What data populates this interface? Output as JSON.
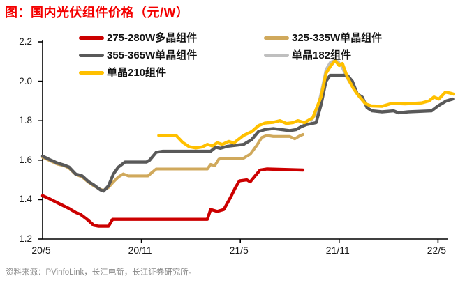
{
  "header": {
    "title": "图：国内光伏组件价格（元/W）",
    "title_color": "#f40000"
  },
  "footer": {
    "source": "资料来源：PVinfoLink，长江电新，长江证券研究所。"
  },
  "legend": {
    "items": [
      {
        "label": "275-280W多晶组件",
        "color": "#cc0000"
      },
      {
        "label": "325-335W单晶组件",
        "color": "#d0a95c"
      },
      {
        "label": "355-365W单晶组件",
        "color": "#595959"
      },
      {
        "label": "单晶182组件",
        "color": "#bfbfbf"
      },
      {
        "label": "单晶210组件",
        "color": "#ffc000"
      }
    ]
  },
  "chart_data": {
    "type": "line",
    "title": "国内光伏组件价格（元/W）",
    "ylabel": "元/W",
    "ylim": [
      1.2,
      2.2
    ],
    "grid": false,
    "legend_position": "top",
    "x_note": "months since 2020-05; axis labels every 6 months",
    "x_axis": {
      "labels": [
        "20/5",
        "20/11",
        "21/5",
        "21/11",
        "22/5"
      ],
      "label_months": [
        0,
        6,
        12,
        18,
        24
      ],
      "tick_months": [
        6,
        12,
        18,
        24
      ]
    },
    "y_axis": {
      "tick_labels": [
        "1.2",
        "1.4",
        "1.6",
        "1.8",
        "2.0",
        "2.2"
      ],
      "tick_values": [
        1.2,
        1.4,
        1.6,
        1.8,
        2.0,
        2.2
      ]
    },
    "draw_order": [
      3,
      1,
      2,
      4,
      0
    ],
    "series": [
      {
        "name": "275-280W多晶组件",
        "color": "#cc0000",
        "width": 4.4,
        "points": [
          [
            0,
            1.42
          ],
          [
            0.4,
            1.405
          ],
          [
            1,
            1.38
          ],
          [
            1.6,
            1.355
          ],
          [
            2,
            1.335
          ],
          [
            2.3,
            1.325
          ],
          [
            2.7,
            1.3
          ],
          [
            3.1,
            1.27
          ],
          [
            3.4,
            1.265
          ],
          [
            4.0,
            1.265
          ],
          [
            4.25,
            1.3
          ],
          [
            10.0,
            1.3
          ],
          [
            10.2,
            1.35
          ],
          [
            10.6,
            1.34
          ],
          [
            11.0,
            1.35
          ],
          [
            11.4,
            1.41
          ],
          [
            11.7,
            1.46
          ],
          [
            11.95,
            1.495
          ],
          [
            12.4,
            1.5
          ],
          [
            12.6,
            1.49
          ],
          [
            12.9,
            1.52
          ],
          [
            13.2,
            1.55
          ],
          [
            13.6,
            1.555
          ],
          [
            15.8,
            1.55
          ]
        ]
      },
      {
        "name": "325-335W单晶组件",
        "color": "#d0a95c",
        "width": 4.1,
        "points": [
          [
            0,
            1.615
          ],
          [
            0.5,
            1.595
          ],
          [
            0.9,
            1.58
          ],
          [
            1.3,
            1.572
          ],
          [
            1.6,
            1.56
          ],
          [
            2.0,
            1.528
          ],
          [
            2.4,
            1.515
          ],
          [
            2.8,
            1.487
          ],
          [
            3.1,
            1.47
          ],
          [
            3.5,
            1.452
          ],
          [
            3.7,
            1.447
          ],
          [
            4.0,
            1.462
          ],
          [
            4.3,
            1.49
          ],
          [
            4.6,
            1.515
          ],
          [
            4.9,
            1.53
          ],
          [
            5.2,
            1.52
          ],
          [
            6.4,
            1.52
          ],
          [
            6.6,
            1.535
          ],
          [
            6.9,
            1.555
          ],
          [
            10.0,
            1.555
          ],
          [
            10.2,
            1.578
          ],
          [
            10.45,
            1.572
          ],
          [
            10.7,
            1.605
          ],
          [
            11.0,
            1.61
          ],
          [
            12.2,
            1.61
          ],
          [
            12.6,
            1.63
          ],
          [
            13.0,
            1.675
          ],
          [
            13.3,
            1.715
          ],
          [
            13.6,
            1.725
          ],
          [
            14.0,
            1.72
          ],
          [
            15.0,
            1.72
          ],
          [
            15.3,
            1.708
          ],
          [
            15.6,
            1.723
          ],
          [
            15.8,
            1.73
          ]
        ]
      },
      {
        "name": "355-365W单晶组件",
        "color": "#595959",
        "width": 4.4,
        "points": [
          [
            0,
            1.62
          ],
          [
            0.5,
            1.6
          ],
          [
            0.9,
            1.585
          ],
          [
            1.3,
            1.575
          ],
          [
            1.6,
            1.565
          ],
          [
            2.0,
            1.53
          ],
          [
            2.4,
            1.52
          ],
          [
            2.8,
            1.49
          ],
          [
            3.1,
            1.475
          ],
          [
            3.5,
            1.45
          ],
          [
            3.7,
            1.443
          ],
          [
            4.0,
            1.47
          ],
          [
            4.3,
            1.53
          ],
          [
            4.6,
            1.565
          ],
          [
            5.0,
            1.59
          ],
          [
            6.3,
            1.59
          ],
          [
            6.5,
            1.6
          ],
          [
            6.9,
            1.64
          ],
          [
            7.3,
            1.645
          ],
          [
            10.2,
            1.645
          ],
          [
            10.5,
            1.665
          ],
          [
            10.8,
            1.66
          ],
          [
            11.2,
            1.67
          ],
          [
            11.7,
            1.675
          ],
          [
            12.2,
            1.68
          ],
          [
            12.7,
            1.705
          ],
          [
            13.1,
            1.745
          ],
          [
            13.5,
            1.755
          ],
          [
            14.0,
            1.76
          ],
          [
            14.5,
            1.755
          ],
          [
            15.0,
            1.75
          ],
          [
            15.4,
            1.755
          ],
          [
            15.7,
            1.77
          ],
          [
            16.0,
            1.78
          ],
          [
            16.6,
            1.79
          ],
          [
            16.9,
            1.88
          ],
          [
            17.2,
            2.0
          ],
          [
            17.45,
            2.03
          ],
          [
            18.5,
            2.03
          ],
          [
            18.8,
            2.0
          ],
          [
            19.1,
            1.935
          ],
          [
            19.4,
            1.92
          ],
          [
            19.7,
            1.865
          ],
          [
            20.0,
            1.85
          ],
          [
            20.6,
            1.845
          ],
          [
            21.3,
            1.85
          ],
          [
            21.6,
            1.84
          ],
          [
            22.2,
            1.845
          ],
          [
            23.6,
            1.85
          ],
          [
            24.0,
            1.875
          ],
          [
            24.5,
            1.9
          ],
          [
            24.9,
            1.91
          ]
        ]
      },
      {
        "name": "单晶182组件",
        "color": "#bfbfbf",
        "width": 3.6,
        "points": [
          [
            16.3,
            1.8
          ],
          [
            16.6,
            1.835
          ],
          [
            16.95,
            1.96
          ],
          [
            17.2,
            2.06
          ],
          [
            17.45,
            2.095
          ],
          [
            17.65,
            2.105
          ],
          [
            17.95,
            2.1
          ],
          [
            18.15,
            2.075
          ],
          [
            18.45,
            2.02
          ],
          [
            18.85,
            1.965
          ],
          [
            19.15,
            1.93
          ],
          [
            19.6,
            1.885
          ],
          [
            19.95,
            1.875
          ],
          [
            20.6,
            1.873
          ],
          [
            21.2,
            1.888
          ],
          [
            22.0,
            1.885
          ],
          [
            23.0,
            1.89
          ],
          [
            23.45,
            1.9
          ],
          [
            23.75,
            1.92
          ],
          [
            24.05,
            1.91
          ],
          [
            24.45,
            1.945
          ],
          [
            24.75,
            1.94
          ],
          [
            24.95,
            1.935
          ]
        ]
      },
      {
        "name": "单晶210组件",
        "color": "#ffc000",
        "width": 4.4,
        "points": [
          [
            7.05,
            1.725
          ],
          [
            8.1,
            1.725
          ],
          [
            8.5,
            1.69
          ],
          [
            8.9,
            1.668
          ],
          [
            9.3,
            1.662
          ],
          [
            9.7,
            1.667
          ],
          [
            10.0,
            1.68
          ],
          [
            10.3,
            1.672
          ],
          [
            10.6,
            1.688
          ],
          [
            10.9,
            1.68
          ],
          [
            11.3,
            1.695
          ],
          [
            11.6,
            1.687
          ],
          [
            12.2,
            1.725
          ],
          [
            12.7,
            1.745
          ],
          [
            13.1,
            1.775
          ],
          [
            13.5,
            1.788
          ],
          [
            14.0,
            1.792
          ],
          [
            14.4,
            1.8
          ],
          [
            14.8,
            1.786
          ],
          [
            15.2,
            1.79
          ],
          [
            15.5,
            1.8
          ],
          [
            15.9,
            1.79
          ],
          [
            16.4,
            1.815
          ],
          [
            16.9,
            1.92
          ],
          [
            17.2,
            2.04
          ],
          [
            17.5,
            2.08
          ],
          [
            17.75,
            2.105
          ],
          [
            18.0,
            2.08
          ],
          [
            18.2,
            2.09
          ],
          [
            18.5,
            2.02
          ],
          [
            18.85,
            1.965
          ],
          [
            19.15,
            1.93
          ],
          [
            19.6,
            1.885
          ],
          [
            19.95,
            1.875
          ],
          [
            20.6,
            1.873
          ],
          [
            21.2,
            1.888
          ],
          [
            22.0,
            1.885
          ],
          [
            23.0,
            1.89
          ],
          [
            23.45,
            1.9
          ],
          [
            23.75,
            1.92
          ],
          [
            24.05,
            1.91
          ],
          [
            24.45,
            1.945
          ],
          [
            24.75,
            1.94
          ],
          [
            24.95,
            1.935
          ]
        ]
      }
    ]
  }
}
